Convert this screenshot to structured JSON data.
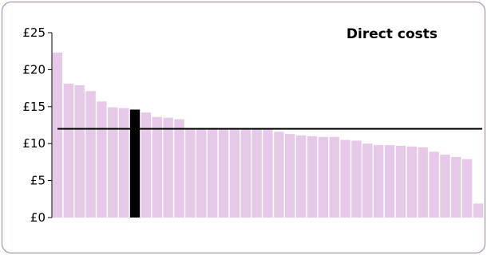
{
  "chart_data": {
    "type": "bar",
    "title": "Direct costs",
    "xlabel": "",
    "ylabel": "",
    "ylim": [
      0,
      25
    ],
    "yticks": [
      {
        "value": 0,
        "label": "£0"
      },
      {
        "value": 5,
        "label": "£5"
      },
      {
        "value": 10,
        "label": "£10"
      },
      {
        "value": 15,
        "label": "£15"
      },
      {
        "value": 20,
        "label": "£20"
      },
      {
        "value": 25,
        "label": "£25"
      }
    ],
    "grid": false,
    "values": [
      22.3,
      18.1,
      17.9,
      17.1,
      15.7,
      14.9,
      14.8,
      14.6,
      14.2,
      13.6,
      13.5,
      13.3,
      12.0,
      12.0,
      12.0,
      12.0,
      12.0,
      12.0,
      12.0,
      12.0,
      11.6,
      11.3,
      11.1,
      11.0,
      10.9,
      10.9,
      10.5,
      10.4,
      10.0,
      9.8,
      9.8,
      9.7,
      9.6,
      9.5,
      8.9,
      8.5,
      8.2,
      7.9,
      1.9
    ],
    "highlight_index": 7,
    "reference_line": 12.0,
    "colors": {
      "bar": "#e6c8e8",
      "bar_edge": "#f7ecf7",
      "highlight": "#000000",
      "reference_line": "#000000",
      "axis": "#000000",
      "frame": "#9a7fa6"
    }
  }
}
